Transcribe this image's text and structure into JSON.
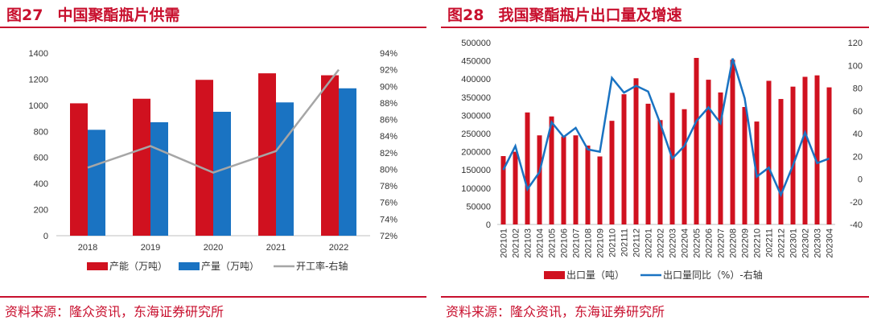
{
  "colors": {
    "red": "#d0111f",
    "blue": "#1a73c2",
    "gray": "#a6a6a6",
    "title": "#c8102e"
  },
  "left": {
    "fig_number": "图27",
    "title": "中国聚酯瓶片供需",
    "source": "资料来源：隆众资讯，东海证券研究所"
  },
  "right": {
    "fig_number": "图28",
    "title": "我国聚酯瓶片出口量及增速",
    "source": "资料来源：隆众资讯，东海证券研究所"
  },
  "chart_data": [
    {
      "type": "bar",
      "title": "中国聚酯瓶片供需",
      "categories": [
        "2018",
        "2019",
        "2020",
        "2021",
        "2022"
      ],
      "ylim": [
        0,
        1400
      ],
      "yticks": [
        "0",
        "200",
        "400",
        "600",
        "800",
        "1000",
        "1200",
        "1400"
      ],
      "y2lim": [
        72,
        94
      ],
      "y2ticks": [
        "72%",
        "74%",
        "76%",
        "78%",
        "80%",
        "82%",
        "84%",
        "86%",
        "88%",
        "90%",
        "92%",
        "94%"
      ],
      "legend_position": "bottom",
      "grid": false,
      "series": [
        {
          "name": "产能（万吨）",
          "type": "bar",
          "color": "#d0111f",
          "values": [
            1015,
            1050,
            1195,
            1245,
            1230
          ]
        },
        {
          "name": "产量（万吨）",
          "type": "bar",
          "color": "#1a73c2",
          "values": [
            812,
            870,
            950,
            1022,
            1130
          ]
        },
        {
          "name": "开工率-右轴",
          "type": "line",
          "axis": "right",
          "color": "#a6a6a6",
          "values": [
            80.2,
            82.8,
            79.6,
            82.2,
            92.0
          ]
        }
      ]
    },
    {
      "type": "bar",
      "title": "我国聚酯瓶片出口量及增速",
      "categories": [
        "202101",
        "202102",
        "202103",
        "202104",
        "202105",
        "202106",
        "202107",
        "202108",
        "202109",
        "202110",
        "202111",
        "202112",
        "202201",
        "202202",
        "202203",
        "202204",
        "202205",
        "202206",
        "202207",
        "202208",
        "202209",
        "202210",
        "202211",
        "202212",
        "202301",
        "202302",
        "202303",
        "202304"
      ],
      "ylim": [
        0,
        500000
      ],
      "yticks": [
        "0",
        "50000",
        "100000",
        "150000",
        "200000",
        "250000",
        "300000",
        "350000",
        "400000",
        "450000",
        "500000"
      ],
      "y2lim": [
        -40,
        120
      ],
      "y2ticks": [
        "-40",
        "-20",
        "0",
        "20",
        "40",
        "60",
        "80",
        "100",
        "120"
      ],
      "legend_position": "bottom",
      "grid": false,
      "series": [
        {
          "name": "出口量（吨）",
          "type": "bar",
          "color": "#d0111f",
          "values": [
            188000,
            200000,
            308000,
            245000,
            297000,
            242000,
            245000,
            217000,
            187000,
            285000,
            358000,
            402000,
            332000,
            287000,
            362000,
            317000,
            458000,
            398000,
            363000,
            453000,
            323000,
            283000,
            395000,
            345000,
            379000,
            406000,
            410000,
            377000
          ]
        },
        {
          "name": "出口量同比（%）-右轴",
          "type": "line",
          "axis": "right",
          "color": "#1a73c2",
          "values": [
            8,
            29,
            -9,
            6,
            50,
            37,
            45,
            26,
            24,
            89,
            76,
            82,
            77,
            49,
            18,
            29,
            51,
            63,
            49,
            106,
            71,
            2,
            10,
            -14,
            12,
            41,
            14,
            18
          ]
        }
      ]
    }
  ]
}
